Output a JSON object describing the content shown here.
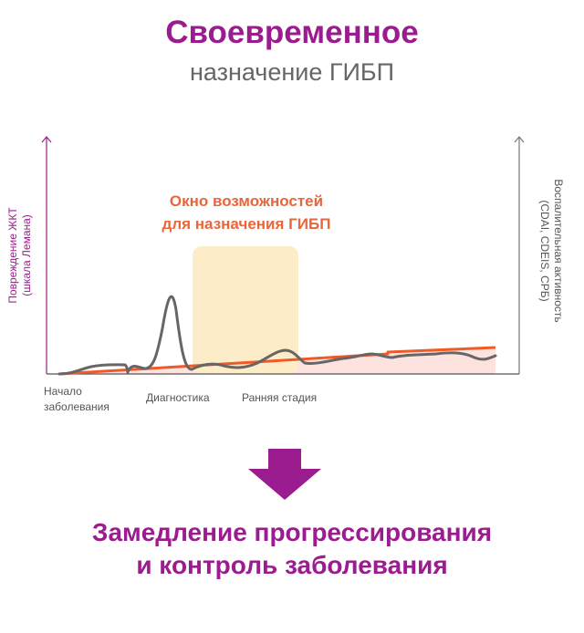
{
  "heading": {
    "title": "Своевременное",
    "subtitle": "назначение ГИБП"
  },
  "diagram": {
    "left_axis_label_line1": "Повреждение ЖКТ",
    "left_axis_label_line2": "(шкала Лемана)",
    "right_axis_label_line1": "Воспалительная активность",
    "right_axis_label_line2": "(CDAI, CDEIS, СРБ)",
    "window_label_line1": "Окно возможностей",
    "window_label_line2": "для назначения ГИБП",
    "x_labels": {
      "onset_line1": "Начало",
      "onset_line2": "заболевания",
      "diagnosis": "Диагностика",
      "early_stage": "Ранняя стадия"
    },
    "colors": {
      "accent": "#9b1c8e",
      "damage_line": "#f05a28",
      "activity_line": "#666666",
      "window_fill": "#fdecc8",
      "damage_area": "#fde3df"
    }
  },
  "conclusion": {
    "line1": "Замедление прогрессирования",
    "line2": "и контроль заболевания"
  }
}
